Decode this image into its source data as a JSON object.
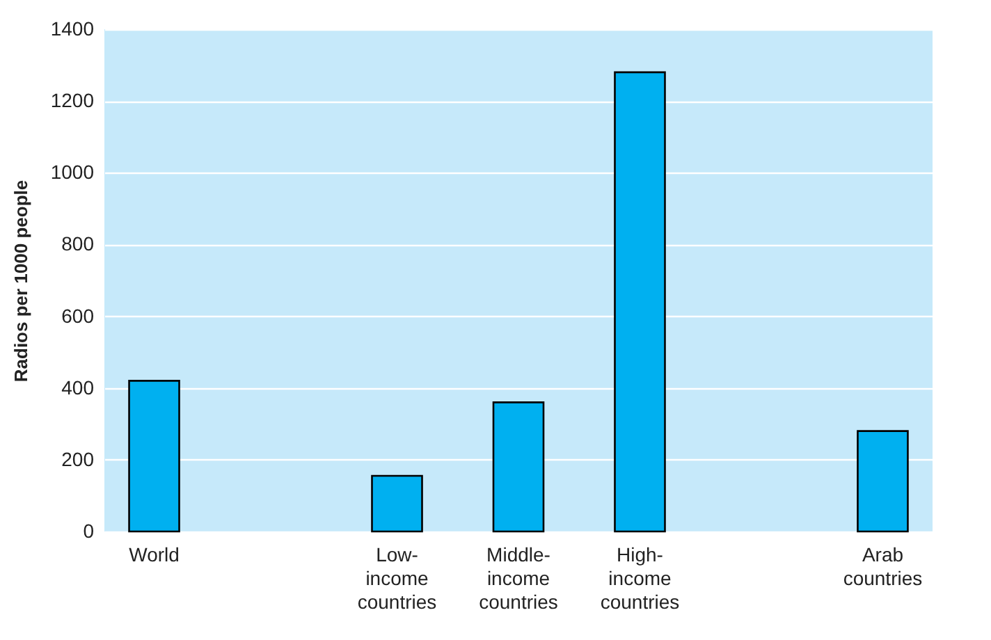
{
  "chart_data": {
    "type": "bar",
    "ylabel": "Radios per 1000 people",
    "categories": [
      "World",
      null,
      "Low-income countries",
      "Middle-income countries",
      "High-income countries",
      null,
      "Arab countries"
    ],
    "values": [
      420,
      null,
      155,
      360,
      1280,
      null,
      280
    ],
    "color": "#00b0f0",
    "ylim": [
      0,
      1400
    ],
    "yticks": [
      0,
      200,
      400,
      600,
      800,
      1000,
      1200,
      1400
    ],
    "grid": "y"
  }
}
